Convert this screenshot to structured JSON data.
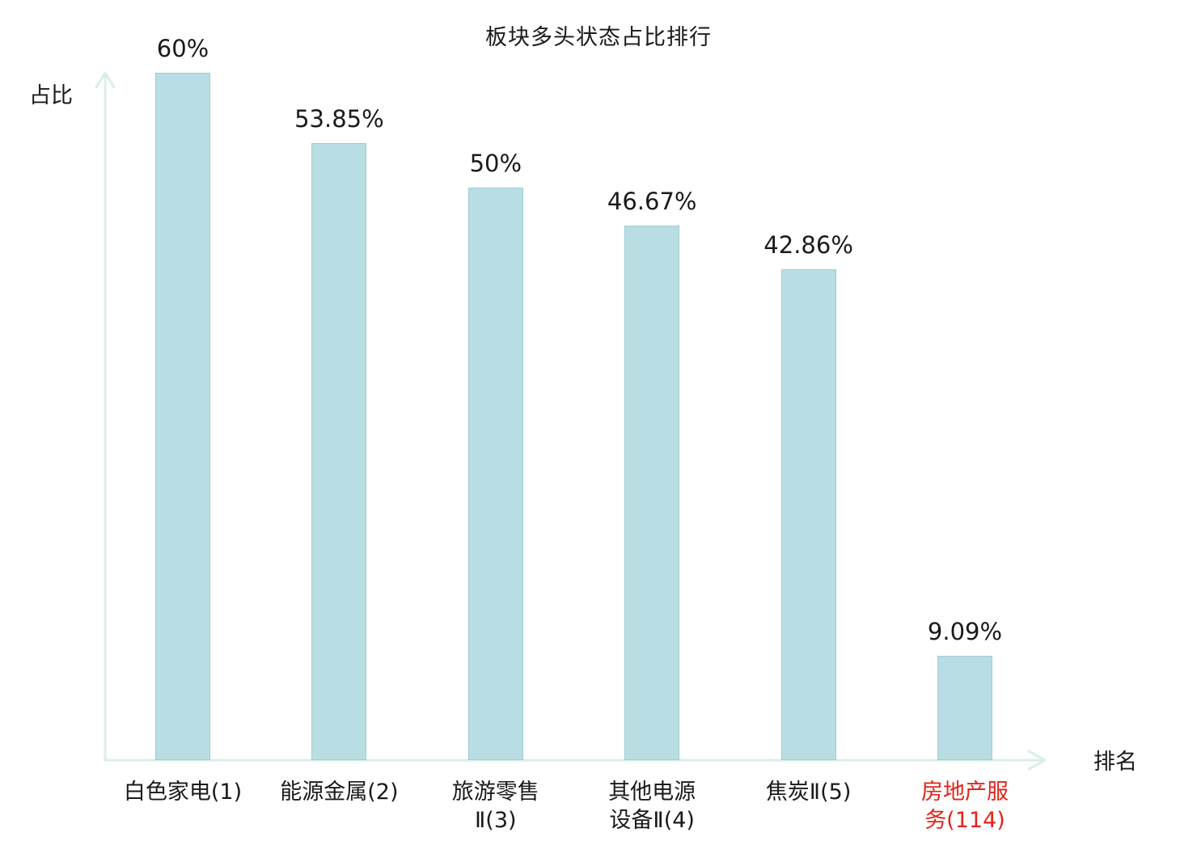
{
  "chart_data": {
    "type": "bar",
    "title": "板块多头状态占比排行",
    "xlabel": "排名",
    "ylabel": "占比",
    "categories": [
      "白色家电(1)",
      "能源金属(2)",
      "旅游零售Ⅱ(3)",
      "其他电源设备Ⅱ(4)",
      "焦炭Ⅱ(5)",
      "房地产服务(114)"
    ],
    "label_lines": [
      [
        "白色家电(1)"
      ],
      [
        "能源金属(2)"
      ],
      [
        "旅游零售",
        "Ⅱ(3)"
      ],
      [
        "其他电源",
        "设备Ⅱ(4)"
      ],
      [
        "焦炭Ⅱ(5)"
      ],
      [
        "房地产服",
        "务(114)"
      ]
    ],
    "values": [
      60,
      53.85,
      50,
      46.67,
      42.86,
      9.09
    ],
    "value_labels": [
      "60%",
      "53.85%",
      "50%",
      "46.67%",
      "42.86%",
      "9.09%"
    ],
    "highlight_index": 5,
    "ylim": [
      0,
      60
    ],
    "grid": false,
    "legend": false,
    "colors": {
      "bar_fill": "#b8dee4",
      "bar_border": "#9fccd4",
      "axis": "#d9efe9",
      "text": "#1a1a1a",
      "highlight": "#e1251b"
    }
  }
}
